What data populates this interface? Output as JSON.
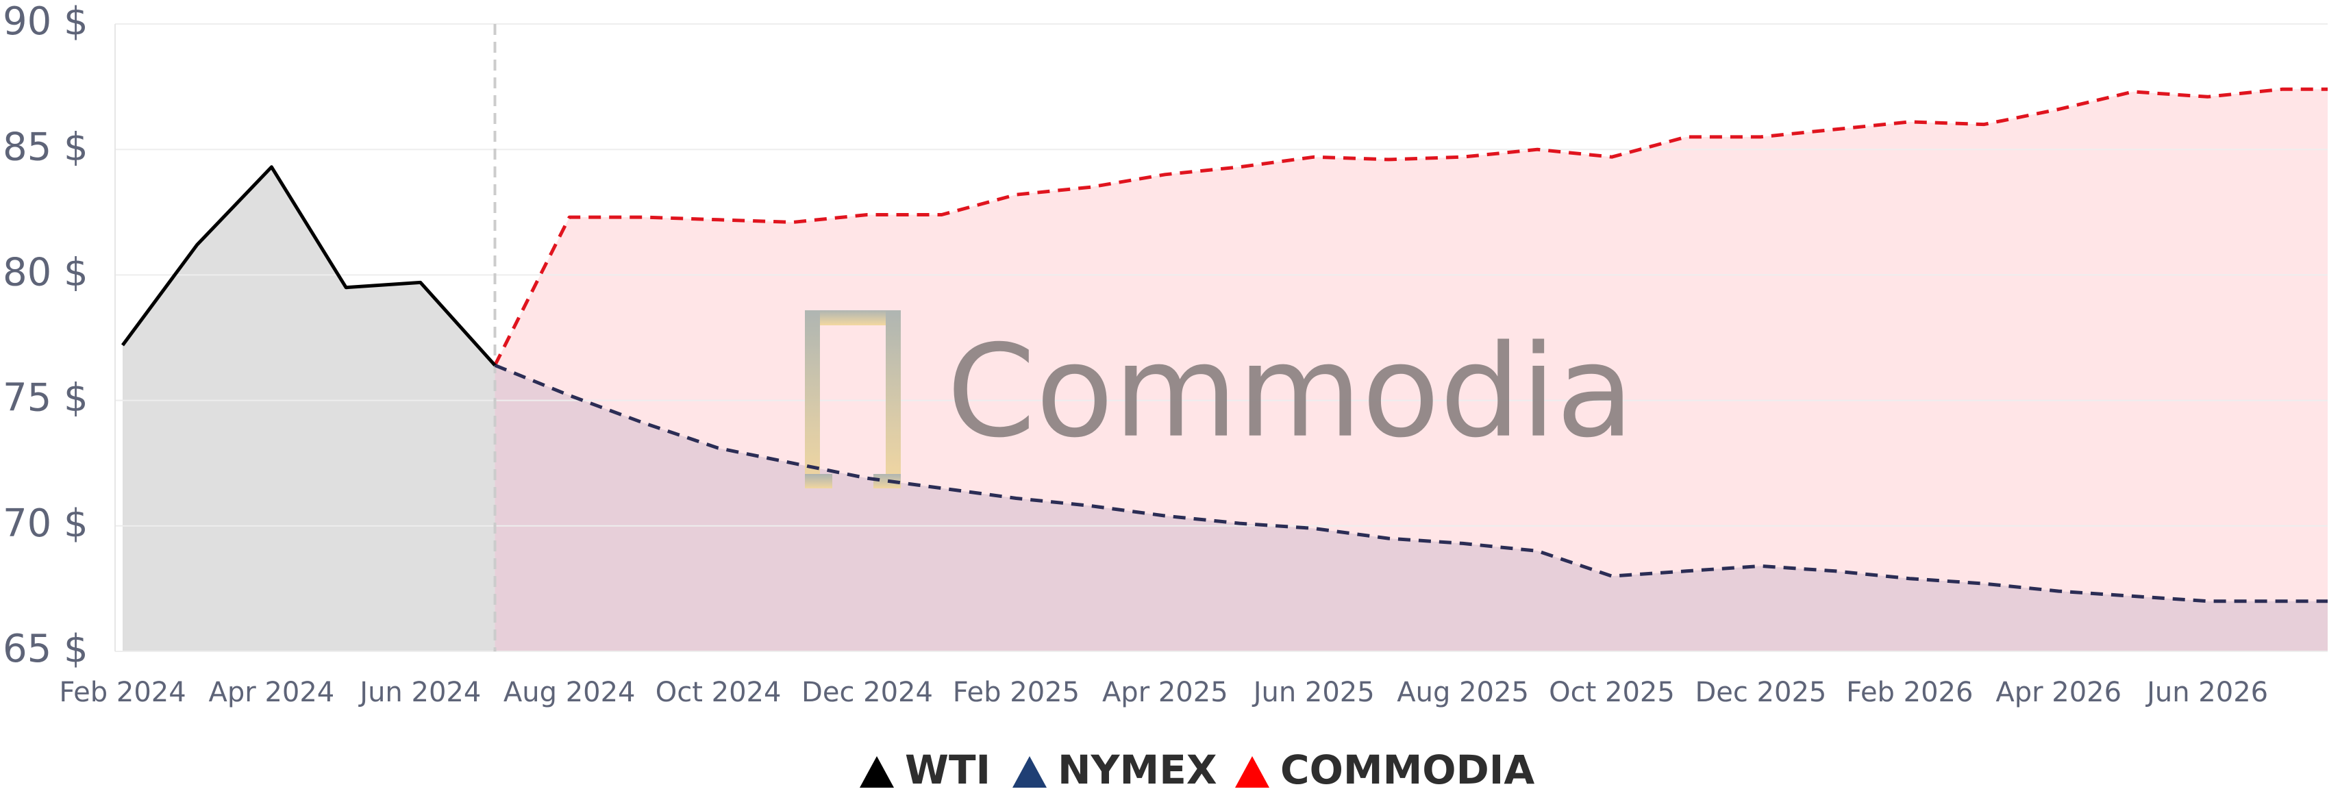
{
  "chart_data": {
    "type": "line",
    "watermark": "Commodia",
    "categories": [
      "Feb 2024",
      null,
      "Apr 2024",
      null,
      "Jun 2024",
      null,
      "Aug 2024",
      null,
      "Oct 2024",
      null,
      "Dec 2024",
      null,
      "Feb 2025",
      null,
      "Apr 2025",
      null,
      "Jun 2025",
      null,
      "Aug 2025",
      null,
      "Oct 2025",
      null,
      "Dec 2025",
      null,
      "Feb 2026",
      null,
      "Apr 2026",
      null,
      "Jun 2026",
      null
    ],
    "series": [
      {
        "name": "WTI",
        "color": "#000000",
        "line_style": "solid",
        "fill": "#d9d9d9",
        "values": [
          77.2,
          81.2,
          84.3,
          79.5,
          79.7,
          76.4,
          null,
          null,
          null,
          null,
          null,
          null,
          null,
          null,
          null,
          null,
          null,
          null,
          null,
          null,
          null,
          null,
          null,
          null,
          null,
          null,
          null,
          null,
          null,
          null
        ]
      },
      {
        "name": "NYMEX",
        "color": "#1f3f74",
        "line_color": "#2b2d55",
        "line_style": "dashed",
        "fill": "#c9b4c8",
        "values": [
          null,
          null,
          null,
          null,
          null,
          76.4,
          75.2,
          74.1,
          73.1,
          72.5,
          71.9,
          71.5,
          71.1,
          70.8,
          70.4,
          70.1,
          69.9,
          69.5,
          69.3,
          69.0,
          68.0,
          68.2,
          68.4,
          68.2,
          67.9,
          67.7,
          67.4,
          67.2,
          67.0,
          67.0
        ]
      },
      {
        "name": "COMMODIA",
        "color": "#ff0000",
        "line_color": "#e0141e",
        "line_style": "dashed",
        "fill": "#ffe0e3",
        "values": [
          null,
          null,
          null,
          null,
          null,
          76.4,
          82.3,
          82.3,
          82.2,
          82.1,
          82.4,
          82.4,
          83.2,
          83.5,
          84.0,
          84.3,
          84.7,
          84.6,
          84.7,
          85.0,
          84.7,
          85.5,
          85.5,
          85.8,
          86.1,
          86.0,
          86.6,
          87.3,
          87.1,
          87.4
        ]
      }
    ],
    "ylim": [
      65,
      90
    ],
    "yticks": [
      {
        "value": 65,
        "label": "65 $"
      },
      {
        "value": 70,
        "label": "70 $"
      },
      {
        "value": 75,
        "label": "75 $"
      },
      {
        "value": 80,
        "label": "80 $"
      },
      {
        "value": 85,
        "label": "85 $"
      },
      {
        "value": 90,
        "label": "90 $"
      }
    ],
    "grid": true,
    "legend": "bottom"
  }
}
